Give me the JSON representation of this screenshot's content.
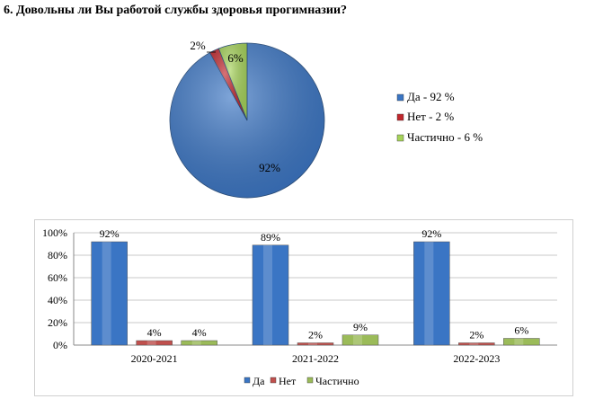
{
  "question": "6. Довольны ли Вы работой службы здоровья прогимназии?",
  "chart_data": [
    {
      "type": "pie",
      "categories": [
        "Да",
        "Нет",
        "Частично"
      ],
      "values": [
        92,
        2,
        6
      ],
      "data_labels": [
        "92%",
        "2%",
        "6%"
      ],
      "legend": [
        "Да - 92 %",
        "Нет - 2 %",
        "Частично - 6 %"
      ],
      "legend_placement": "right",
      "colors": [
        "#3a75c4",
        "#c0272d",
        "#a6d35a"
      ]
    },
    {
      "type": "bar",
      "categories": [
        "2020-2021",
        "2021-2022",
        "2022-2023"
      ],
      "series": [
        {
          "name": "Да",
          "values": [
            92,
            89,
            92
          ],
          "labels": [
            "92%",
            "89%",
            "92%"
          ],
          "color": "#3a75c4"
        },
        {
          "name": "Нет",
          "values": [
            4,
            2,
            2
          ],
          "labels": [
            "4%",
            "2%",
            "2%"
          ],
          "color": "#c0504d"
        },
        {
          "name": "Частично",
          "values": [
            4,
            9,
            6
          ],
          "labels": [
            "4%",
            "9%",
            "6%"
          ],
          "color": "#9bbb59"
        }
      ],
      "ylim": [
        0,
        100
      ],
      "yticks": [
        "0%",
        "20%",
        "40%",
        "60%",
        "80%",
        "100%"
      ],
      "grid": true,
      "legend_placement": "bottom"
    }
  ]
}
